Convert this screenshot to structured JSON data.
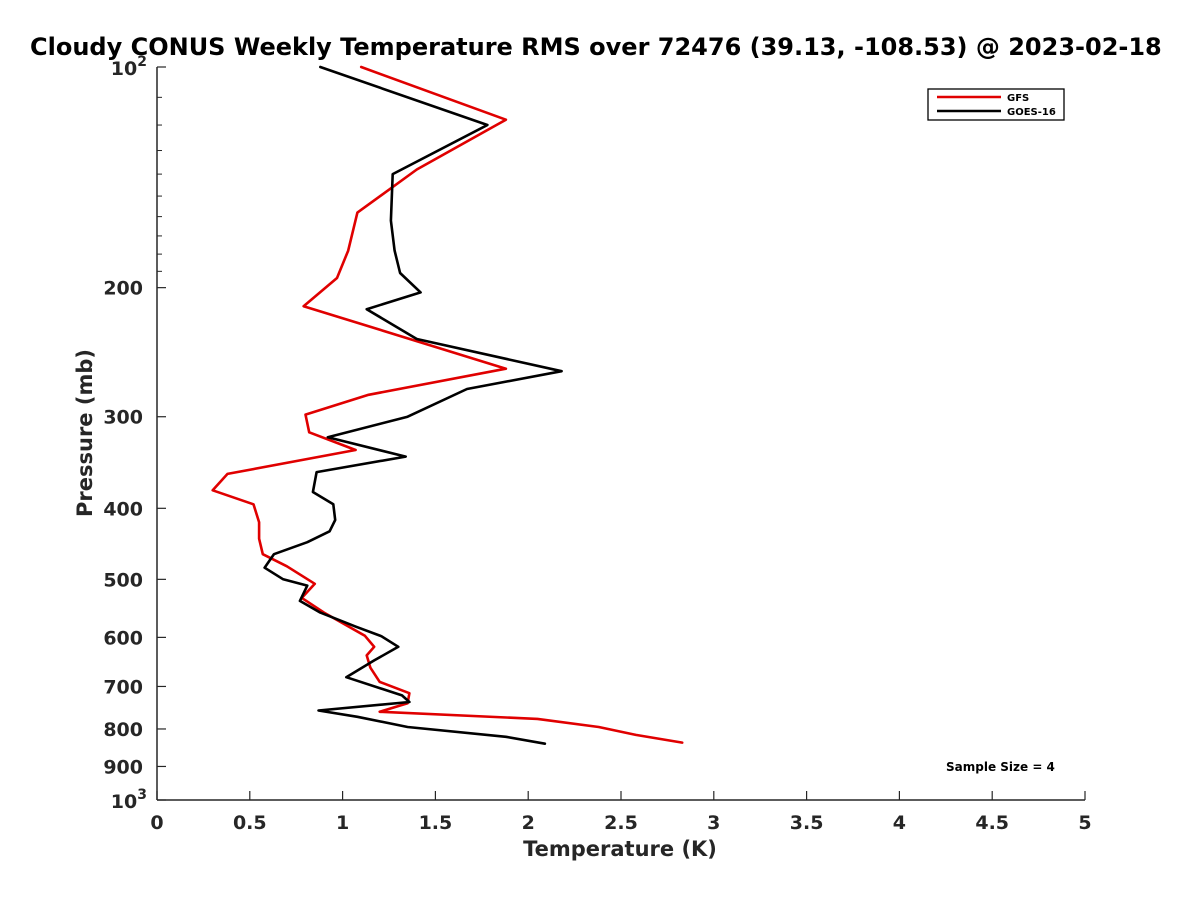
{
  "chart_data": {
    "type": "line",
    "title": "Cloudy CONUS Weekly Temperature RMS over 72476 (39.13, -108.53) @ 2023-02-18",
    "xlabel": "Temperature (K)",
    "ylabel": "Pressure (mb)",
    "xlim": [
      0,
      5
    ],
    "ylim": [
      100,
      1000
    ],
    "yscale": "log",
    "y_reversed": true,
    "grid": false,
    "legend_position": "top-right",
    "x_ticks": [
      {
        "value": 0,
        "label": "0"
      },
      {
        "value": 0.5,
        "label": "0.5"
      },
      {
        "value": 1,
        "label": "1"
      },
      {
        "value": 1.5,
        "label": "1.5"
      },
      {
        "value": 2,
        "label": "2"
      },
      {
        "value": 2.5,
        "label": "2.5"
      },
      {
        "value": 3,
        "label": "3"
      },
      {
        "value": 3.5,
        "label": "3.5"
      },
      {
        "value": 4,
        "label": "4"
      },
      {
        "value": 4.5,
        "label": "4.5"
      },
      {
        "value": 5,
        "label": "5"
      }
    ],
    "y_ticks": [
      {
        "value": 100,
        "label": "10",
        "exp": "2"
      },
      {
        "value": 200,
        "label": "200"
      },
      {
        "value": 300,
        "label": "300"
      },
      {
        "value": 400,
        "label": "400"
      },
      {
        "value": 500,
        "label": "500"
      },
      {
        "value": 600,
        "label": "600"
      },
      {
        "value": 700,
        "label": "700"
      },
      {
        "value": 800,
        "label": "800"
      },
      {
        "value": 900,
        "label": "900"
      },
      {
        "value": 1000,
        "label": "10",
        "exp": "3"
      }
    ],
    "annotation": "Sample Size = 4",
    "series": [
      {
        "name": "GFS",
        "color": "#e00000",
        "x": [
          1.1,
          1.88,
          1.4,
          1.08,
          1.03,
          0.97,
          0.79,
          1.88,
          1.14,
          0.8,
          0.82,
          1.07,
          0.38,
          0.3,
          0.52,
          0.55,
          0.55,
          0.57,
          0.7,
          0.85,
          0.78,
          0.9,
          1.12,
          1.17,
          1.13,
          1.15,
          1.2,
          1.36,
          1.35,
          1.2,
          2.05,
          2.38,
          2.58,
          2.83
        ],
        "y": [
          100,
          118,
          138,
          158,
          178,
          194,
          212,
          258,
          280,
          298,
          315,
          333,
          359,
          378,
          395,
          418,
          440,
          462,
          480,
          507,
          530,
          555,
          597,
          618,
          635,
          660,
          690,
          715,
          738,
          758,
          775,
          795,
          815,
          835
        ]
      },
      {
        "name": "GOES-16",
        "color": "#000000",
        "x": [
          0.88,
          1.78,
          1.27,
          1.26,
          1.28,
          1.31,
          1.42,
          1.13,
          1.4,
          2.18,
          1.67,
          1.35,
          0.92,
          1.34,
          0.86,
          0.84,
          0.95,
          0.96,
          0.93,
          0.81,
          0.63,
          0.58,
          0.68,
          0.81,
          0.77,
          0.88,
          1.07,
          1.21,
          1.3,
          1.17,
          1.02,
          1.32,
          1.36,
          0.87,
          1.08,
          1.35,
          1.88,
          2.09
        ],
        "y": [
          100,
          120,
          140,
          162,
          178,
          191,
          203,
          214,
          235,
          260,
          275,
          300,
          320,
          340,
          357,
          380,
          395,
          415,
          430,
          445,
          462,
          482,
          500,
          510,
          535,
          555,
          580,
          598,
          618,
          645,
          680,
          720,
          735,
          755,
          770,
          795,
          820,
          838
        ]
      }
    ]
  }
}
